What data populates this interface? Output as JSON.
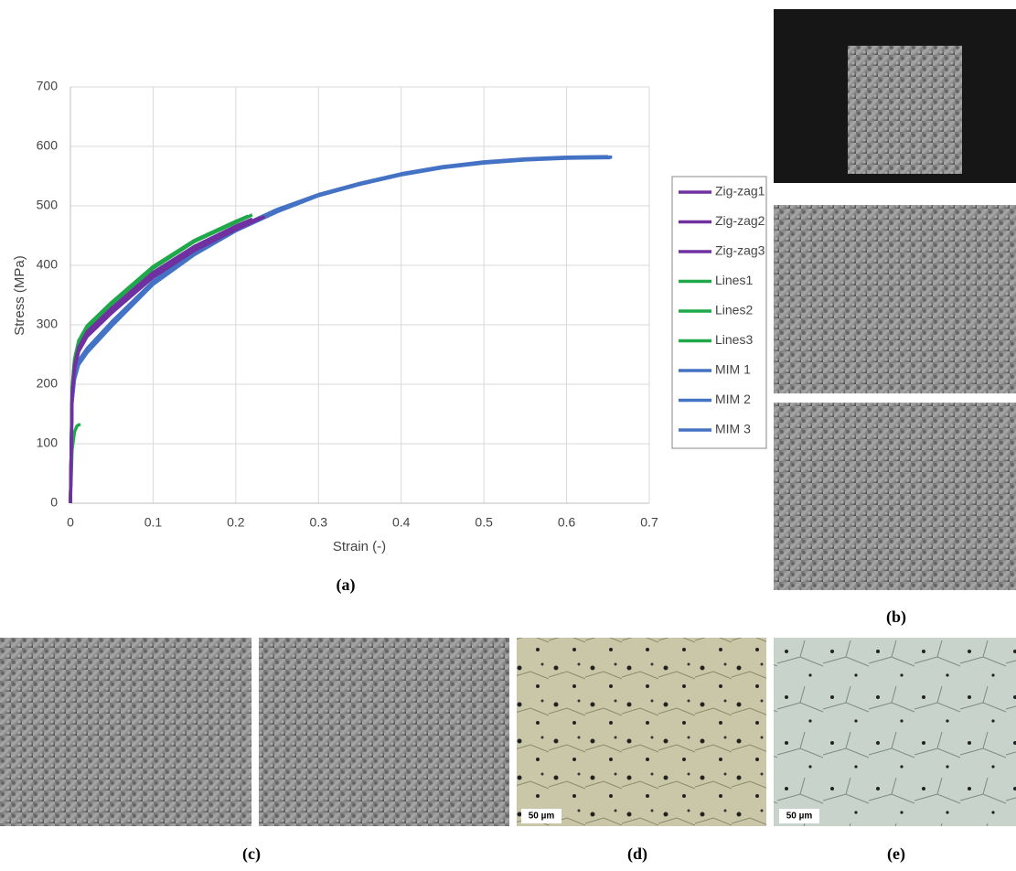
{
  "chart_data": {
    "type": "line",
    "x_label": "Strain (-)",
    "y_label": "Stress (MPa)",
    "xlim": [
      0,
      0.7
    ],
    "xticks": [
      0,
      0.1,
      0.2,
      0.3,
      0.4,
      0.5,
      0.6,
      0.7
    ],
    "ylim": [
      0,
      700
    ],
    "yticks": [
      0,
      100,
      200,
      300,
      400,
      500,
      600,
      700
    ],
    "grid": true,
    "legend": "right",
    "series": [
      {
        "name": "Zig-zag1",
        "color": "#7030a0",
        "x": [
          0,
          0.002,
          0.005,
          0.01,
          0.02,
          0.05,
          0.1,
          0.15,
          0.2,
          0.23
        ],
        "values": [
          0,
          180,
          228,
          258,
          283,
          323,
          383,
          428,
          463,
          480
        ]
      },
      {
        "name": "Zig-zag2",
        "color": "#7030a0",
        "x": [
          0,
          0.002,
          0.005,
          0.01,
          0.02,
          0.05,
          0.1,
          0.15,
          0.2,
          0.22
        ],
        "values": [
          0,
          185,
          232,
          262,
          288,
          328,
          388,
          432,
          466,
          478
        ]
      },
      {
        "name": "Zig-zag3",
        "color": "#7030a0",
        "x": [
          0,
          0.002,
          0.005,
          0.01,
          0.02,
          0.05,
          0.1,
          0.15,
          0.2,
          0.235
        ],
        "values": [
          0,
          178,
          226,
          255,
          280,
          320,
          380,
          425,
          460,
          482
        ]
      },
      {
        "name": "Lines1",
        "color": "#1fa84a",
        "x": [
          0,
          0.002,
          0.005,
          0.01,
          0.02,
          0.05,
          0.1,
          0.15,
          0.2,
          0.22
        ],
        "values": [
          0,
          190,
          240,
          270,
          295,
          335,
          395,
          440,
          472,
          485
        ]
      },
      {
        "name": "Lines2",
        "color": "#1fa84a",
        "x": [
          0,
          0.002,
          0.005,
          0.01,
          0.02,
          0.05,
          0.1,
          0.15,
          0.2,
          0.215
        ],
        "values": [
          0,
          192,
          243,
          273,
          298,
          338,
          398,
          442,
          474,
          483
        ]
      },
      {
        "name": "Lines3",
        "color": "#1fa84a",
        "x": [
          0,
          0.002,
          0.005,
          0.008,
          0.012
        ],
        "values": [
          0,
          90,
          120,
          130,
          133
        ]
      },
      {
        "name": "MIM 1",
        "color": "#4472c4",
        "x": [
          0,
          0.002,
          0.005,
          0.01,
          0.02,
          0.05,
          0.1,
          0.15,
          0.2,
          0.25,
          0.3,
          0.35,
          0.4,
          0.45,
          0.5,
          0.55,
          0.6,
          0.655
        ],
        "values": [
          0,
          170,
          210,
          235,
          255,
          300,
          370,
          420,
          460,
          492,
          518,
          537,
          553,
          565,
          573,
          578,
          581,
          582
        ]
      },
      {
        "name": "MIM 2",
        "color": "#4472c4",
        "x": [
          0,
          0.002,
          0.005,
          0.01,
          0.02,
          0.05,
          0.1,
          0.15,
          0.2,
          0.25,
          0.3,
          0.35,
          0.4,
          0.45,
          0.5,
          0.55,
          0.6,
          0.65
        ],
        "values": [
          0,
          175,
          215,
          240,
          260,
          305,
          373,
          423,
          462,
          494,
          519,
          538,
          554,
          566,
          574,
          579,
          582,
          583
        ]
      },
      {
        "name": "MIM 3",
        "color": "#4472c4",
        "x": [
          0,
          0.002,
          0.005,
          0.01,
          0.02,
          0.05,
          0.1,
          0.15,
          0.2,
          0.25,
          0.3,
          0.35,
          0.4,
          0.45,
          0.5,
          0.55,
          0.6,
          0.653
        ],
        "values": [
          0,
          168,
          208,
          233,
          253,
          298,
          368,
          418,
          458,
          490,
          517,
          536,
          552,
          564,
          572,
          577,
          580,
          581
        ]
      }
    ]
  },
  "panels": {
    "labels": [
      "(a)",
      "(b)",
      "(c)",
      "(d)",
      "(e)"
    ],
    "scale_bars": [
      "50 µm",
      "50 µm"
    ]
  }
}
